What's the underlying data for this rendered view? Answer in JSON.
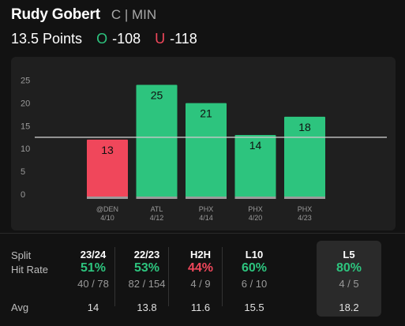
{
  "header": {
    "player_name": "Rudy Gobert",
    "player_meta": "C | MIN",
    "line": "13.5 Points",
    "over_letter": "O",
    "over_odds": "-108",
    "under_letter": "U",
    "under_odds": "-118"
  },
  "colors": {
    "over": "#2dc47e",
    "under": "#f0475b",
    "panel": "#1f1f1f",
    "background": "#121212"
  },
  "chart_data": {
    "type": "bar",
    "categories": [
      {
        "opp": "@DEN",
        "date": "4/10"
      },
      {
        "opp": "ATL",
        "date": "4/12"
      },
      {
        "opp": "PHX",
        "date": "4/14"
      },
      {
        "opp": "PHX",
        "date": "4/20"
      },
      {
        "opp": "PHX",
        "date": "4/23"
      }
    ],
    "values": [
      13,
      25,
      21,
      14,
      18
    ],
    "threshold": 13.5,
    "yticks": [
      0,
      5,
      10,
      15,
      20,
      25
    ],
    "ylim": [
      0,
      27.5
    ],
    "grid": true
  },
  "splits": {
    "row_labels": {
      "split": "Split",
      "hit_rate": "Hit Rate",
      "avg": "Avg"
    },
    "columns": [
      {
        "name": "23/24",
        "pct": "51%",
        "frac": "40 / 78",
        "avg": "14",
        "status": "over",
        "selected": false
      },
      {
        "name": "22/23",
        "pct": "53%",
        "frac": "82 / 154",
        "avg": "13.8",
        "status": "over",
        "selected": false
      },
      {
        "name": "H2H",
        "pct": "44%",
        "frac": "4 / 9",
        "avg": "11.6",
        "status": "under",
        "selected": false
      },
      {
        "name": "L10",
        "pct": "60%",
        "frac": "6 / 10",
        "avg": "15.5",
        "status": "over",
        "selected": false
      },
      {
        "name": "L5",
        "pct": "80%",
        "frac": "4 / 5",
        "avg": "18.2",
        "status": "over",
        "selected": true
      }
    ]
  }
}
